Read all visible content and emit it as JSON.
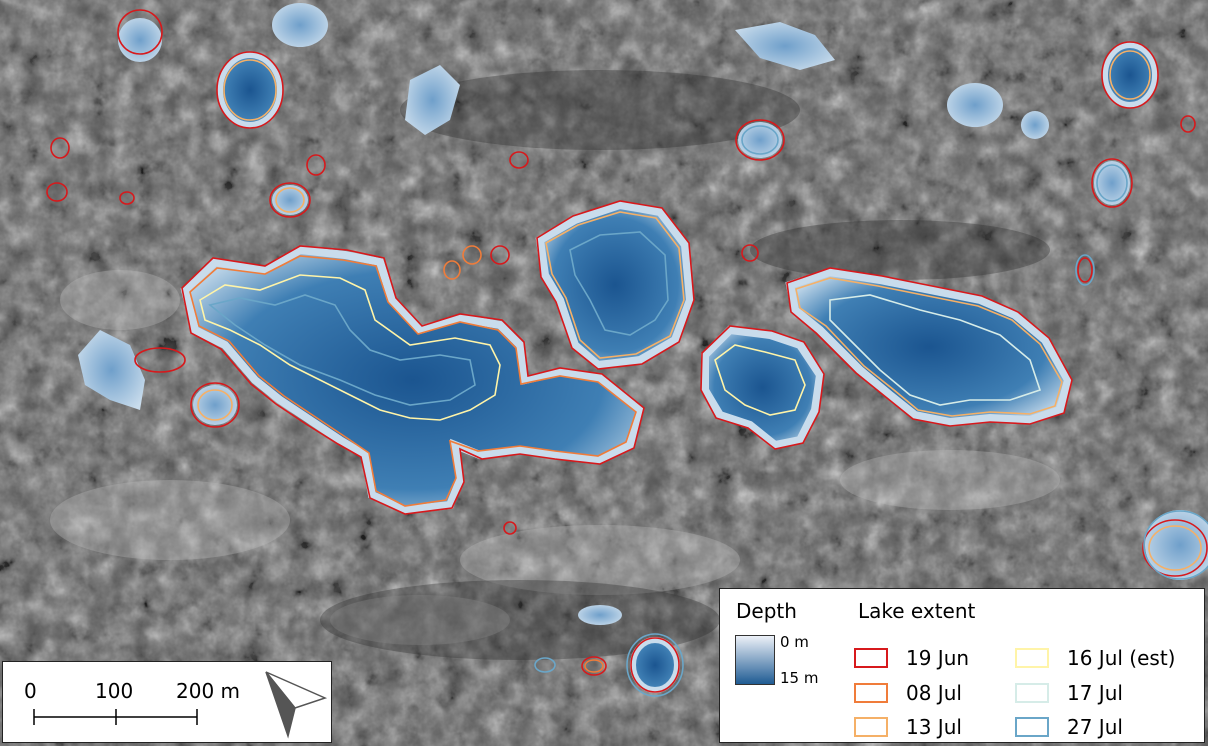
{
  "map": {
    "background_color": "#5a5a5a",
    "lake_fill_shallow": "#cfe0ef",
    "lake_fill_deep": "#1f5b93"
  },
  "scale_bar": {
    "ticks": [
      "0",
      "100",
      "200 m"
    ],
    "north_arrow_icon": "north-arrow-icon"
  },
  "legend": {
    "depth_title": "Depth",
    "depth_min": "0 m",
    "depth_max": "15 m",
    "extent_title": "Lake extent",
    "entries": [
      {
        "label": "19 Jun",
        "color": "#d7191c"
      },
      {
        "label": "08 Jul",
        "color": "#f07c3a"
      },
      {
        "label": "13 Jul",
        "color": "#f5b067"
      },
      {
        "label": "16 Jul (est)",
        "color": "#fff4a8"
      },
      {
        "label": "17 Jul",
        "color": "#d6ece8"
      },
      {
        "label": "27 Jul",
        "color": "#6aa6c8"
      }
    ]
  }
}
